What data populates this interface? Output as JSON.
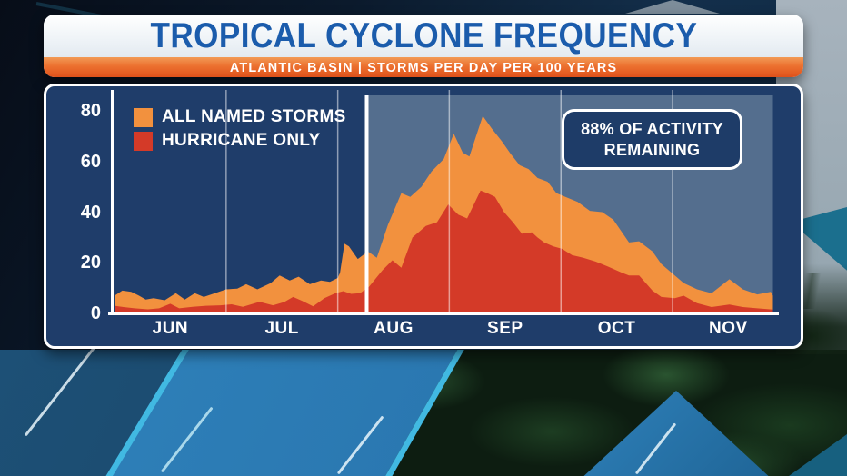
{
  "header": {
    "title": "TROPICAL CYCLONE FREQUENCY",
    "subtitle": "ATLANTIC BASIN | STORMS PER DAY PER 100 YEARS"
  },
  "annotation": {
    "line1": "88% OF ACTIVITY",
    "line2": "REMAINING"
  },
  "colors": {
    "panel_bg": "#1f3d6a",
    "named_storms": "#f2913e",
    "hurricane_only": "#d43a28",
    "highlight_region": "#546e8e",
    "axis_lines": "#ffffff",
    "gridline": "rgba(255,255,255,0.5)",
    "title_blue": "#1b5cac",
    "subtitle_bar_orange": "#ec702f"
  },
  "chart_data": {
    "type": "area",
    "title": "TROPICAL CYCLONE FREQUENCY",
    "subtitle": "ATLANTIC BASIN | STORMS PER DAY PER 100 YEARS",
    "xlabel": "",
    "ylabel": "Storms per day per 100 years",
    "x_axis": {
      "labels": [
        "JUN",
        "JUL",
        "AUG",
        "SEP",
        "OCT",
        "NOV"
      ],
      "range_months": [
        0,
        6
      ]
    },
    "y_axis": {
      "ticks": [
        0,
        20,
        40,
        60,
        80
      ],
      "range": [
        0,
        80
      ]
    },
    "legend_position": "top-left",
    "grid": "vertical-month-lines",
    "legend": [
      {
        "label": "ALL NAMED STORMS",
        "color": "#f2913e"
      },
      {
        "label": "HURRICANE ONLY",
        "color": "#d43a28"
      }
    ],
    "highlight_region": {
      "start_month": 2.26,
      "end_month": 5.9,
      "color": "#546e8e",
      "label": "88% OF ACTIVITY REMAINING"
    },
    "today_marker_month": 2.26,
    "series": [
      {
        "name": "ALL NAMED STORMS",
        "slug": "all-named-storms",
        "color": "#f2913e",
        "points": [
          [
            0,
            7
          ],
          [
            0.07,
            9
          ],
          [
            0.15,
            8.5
          ],
          [
            0.22,
            7
          ],
          [
            0.28,
            5.5
          ],
          [
            0.35,
            6
          ],
          [
            0.45,
            5.2
          ],
          [
            0.55,
            8
          ],
          [
            0.63,
            5.5
          ],
          [
            0.72,
            8
          ],
          [
            0.8,
            6.5
          ],
          [
            0.9,
            8
          ],
          [
            1.0,
            9.5
          ],
          [
            1.1,
            9.8
          ],
          [
            1.18,
            11.5
          ],
          [
            1.28,
            9.5
          ],
          [
            1.4,
            12
          ],
          [
            1.48,
            15
          ],
          [
            1.57,
            13
          ],
          [
            1.65,
            14.5
          ],
          [
            1.75,
            11.5
          ],
          [
            1.85,
            13
          ],
          [
            1.93,
            12.5
          ],
          [
            2.0,
            14
          ],
          [
            2.02,
            16
          ],
          [
            2.06,
            27.5
          ],
          [
            2.1,
            26.5
          ],
          [
            2.18,
            21.5
          ],
          [
            2.27,
            24.5
          ],
          [
            2.35,
            22
          ],
          [
            2.45,
            35
          ],
          [
            2.57,
            47.5
          ],
          [
            2.65,
            46
          ],
          [
            2.75,
            50
          ],
          [
            2.84,
            56
          ],
          [
            2.95,
            61
          ],
          [
            3.04,
            71
          ],
          [
            3.12,
            63.5
          ],
          [
            3.18,
            62
          ],
          [
            3.3,
            78
          ],
          [
            3.38,
            73
          ],
          [
            3.47,
            68
          ],
          [
            3.55,
            63
          ],
          [
            3.63,
            58.5
          ],
          [
            3.71,
            57
          ],
          [
            3.79,
            53.5
          ],
          [
            3.88,
            52
          ],
          [
            3.96,
            47.5
          ],
          [
            4.04,
            46
          ],
          [
            4.15,
            44
          ],
          [
            4.26,
            40.5
          ],
          [
            4.37,
            40
          ],
          [
            4.47,
            37
          ],
          [
            4.61,
            28
          ],
          [
            4.7,
            28.5
          ],
          [
            4.82,
            24.5
          ],
          [
            4.9,
            19.5
          ],
          [
            5.02,
            15
          ],
          [
            5.1,
            12
          ],
          [
            5.22,
            9.5
          ],
          [
            5.35,
            8
          ],
          [
            5.51,
            13.5
          ],
          [
            5.63,
            9.5
          ],
          [
            5.76,
            7.5
          ],
          [
            5.88,
            8.5
          ],
          [
            5.9,
            7
          ]
        ]
      },
      {
        "name": "HURRICANE ONLY",
        "slug": "hurricane-only",
        "color": "#d43a28",
        "points": [
          [
            0,
            3
          ],
          [
            0.08,
            2.5
          ],
          [
            0.18,
            2
          ],
          [
            0.3,
            1.6
          ],
          [
            0.4,
            2
          ],
          [
            0.5,
            3.8
          ],
          [
            0.58,
            2
          ],
          [
            0.7,
            2.6
          ],
          [
            0.82,
            3
          ],
          [
            0.95,
            3.2
          ],
          [
            1.05,
            3.6
          ],
          [
            1.15,
            2.6
          ],
          [
            1.3,
            4.6
          ],
          [
            1.42,
            3.2
          ],
          [
            1.52,
            4.5
          ],
          [
            1.6,
            6.5
          ],
          [
            1.68,
            5
          ],
          [
            1.78,
            2.8
          ],
          [
            1.88,
            6
          ],
          [
            1.98,
            8
          ],
          [
            2.05,
            8.8
          ],
          [
            2.12,
            7.7
          ],
          [
            2.2,
            8
          ],
          [
            2.28,
            10.5
          ],
          [
            2.4,
            17
          ],
          [
            2.49,
            21
          ],
          [
            2.57,
            18
          ],
          [
            2.67,
            30
          ],
          [
            2.79,
            34.5
          ],
          [
            2.89,
            36
          ],
          [
            2.99,
            43
          ],
          [
            3.08,
            39
          ],
          [
            3.16,
            37.5
          ],
          [
            3.28,
            48.5
          ],
          [
            3.34,
            47.5
          ],
          [
            3.41,
            46
          ],
          [
            3.49,
            40
          ],
          [
            3.57,
            36
          ],
          [
            3.65,
            31.5
          ],
          [
            3.74,
            32
          ],
          [
            3.79,
            30
          ],
          [
            3.85,
            28
          ],
          [
            3.93,
            26.5
          ],
          [
            4.01,
            25.5
          ],
          [
            4.1,
            23
          ],
          [
            4.2,
            22
          ],
          [
            4.31,
            20.5
          ],
          [
            4.42,
            18.5
          ],
          [
            4.55,
            16
          ],
          [
            4.61,
            15
          ],
          [
            4.7,
            15
          ],
          [
            4.82,
            9
          ],
          [
            4.9,
            6.5
          ],
          [
            5.02,
            6
          ],
          [
            5.1,
            7
          ],
          [
            5.22,
            4
          ],
          [
            5.35,
            2.5
          ],
          [
            5.51,
            3.5
          ],
          [
            5.63,
            2.5
          ],
          [
            5.76,
            2
          ],
          [
            5.9,
            1.5
          ]
        ]
      }
    ]
  }
}
